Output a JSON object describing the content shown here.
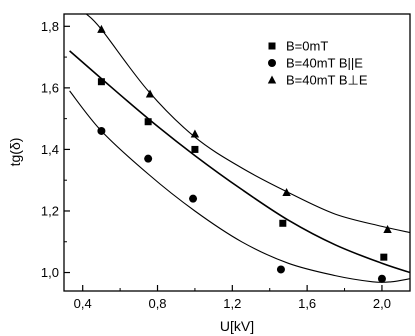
{
  "chart_data": {
    "type": "scatter",
    "xlabel": "U[kV]",
    "ylabel": "tg(δ)",
    "xlim": [
      0.3,
      2.15
    ],
    "ylim": [
      0.94,
      1.84
    ],
    "xticks": [
      "0,4",
      "0,8",
      "1,2",
      "1,6",
      "2,0"
    ],
    "xtick_values": [
      0.4,
      0.8,
      1.2,
      1.6,
      2.0
    ],
    "yticks": [
      "1,0",
      "1,2",
      "1,4",
      "1,6",
      "1,8"
    ],
    "ytick_values": [
      1.0,
      1.2,
      1.4,
      1.6,
      1.8
    ],
    "grid": false,
    "legend_position": "top-right",
    "series": [
      {
        "name": "B=0mT",
        "marker": "square",
        "points": [
          [
            0.5,
            1.62
          ],
          [
            0.75,
            1.49
          ],
          [
            1.0,
            1.4
          ],
          [
            1.47,
            1.16
          ],
          [
            2.01,
            1.05
          ]
        ],
        "fit": [
          [
            0.33,
            1.72
          ],
          [
            0.5,
            1.63
          ],
          [
            0.75,
            1.5
          ],
          [
            1.0,
            1.38
          ],
          [
            1.25,
            1.27
          ],
          [
            1.5,
            1.17
          ],
          [
            1.75,
            1.09
          ],
          [
            2.0,
            1.03
          ],
          [
            2.15,
            1.0
          ]
        ]
      },
      {
        "name": "B=40mT B||E",
        "marker": "circle",
        "points": [
          [
            0.5,
            1.46
          ],
          [
            0.75,
            1.37
          ],
          [
            0.99,
            1.24
          ],
          [
            1.46,
            1.01
          ],
          [
            2.0,
            0.98
          ]
        ],
        "fit": [
          [
            0.33,
            1.59
          ],
          [
            0.5,
            1.46
          ],
          [
            0.75,
            1.32
          ],
          [
            1.0,
            1.2
          ],
          [
            1.25,
            1.1
          ],
          [
            1.5,
            1.03
          ],
          [
            1.75,
            0.99
          ],
          [
            1.95,
            0.97
          ],
          [
            2.05,
            0.97
          ],
          [
            2.15,
            0.98
          ]
        ]
      },
      {
        "name": "B=40mT B⊥E",
        "marker": "triangle",
        "points": [
          [
            0.5,
            1.79
          ],
          [
            0.76,
            1.58
          ],
          [
            1.0,
            1.45
          ],
          [
            1.49,
            1.26
          ],
          [
            2.03,
            1.14
          ]
        ],
        "fit": [
          [
            0.42,
            1.84
          ],
          [
            0.5,
            1.79
          ],
          [
            0.75,
            1.59
          ],
          [
            1.0,
            1.44
          ],
          [
            1.25,
            1.34
          ],
          [
            1.5,
            1.26
          ],
          [
            1.75,
            1.19
          ],
          [
            2.0,
            1.15
          ],
          [
            2.15,
            1.13
          ]
        ]
      }
    ]
  }
}
